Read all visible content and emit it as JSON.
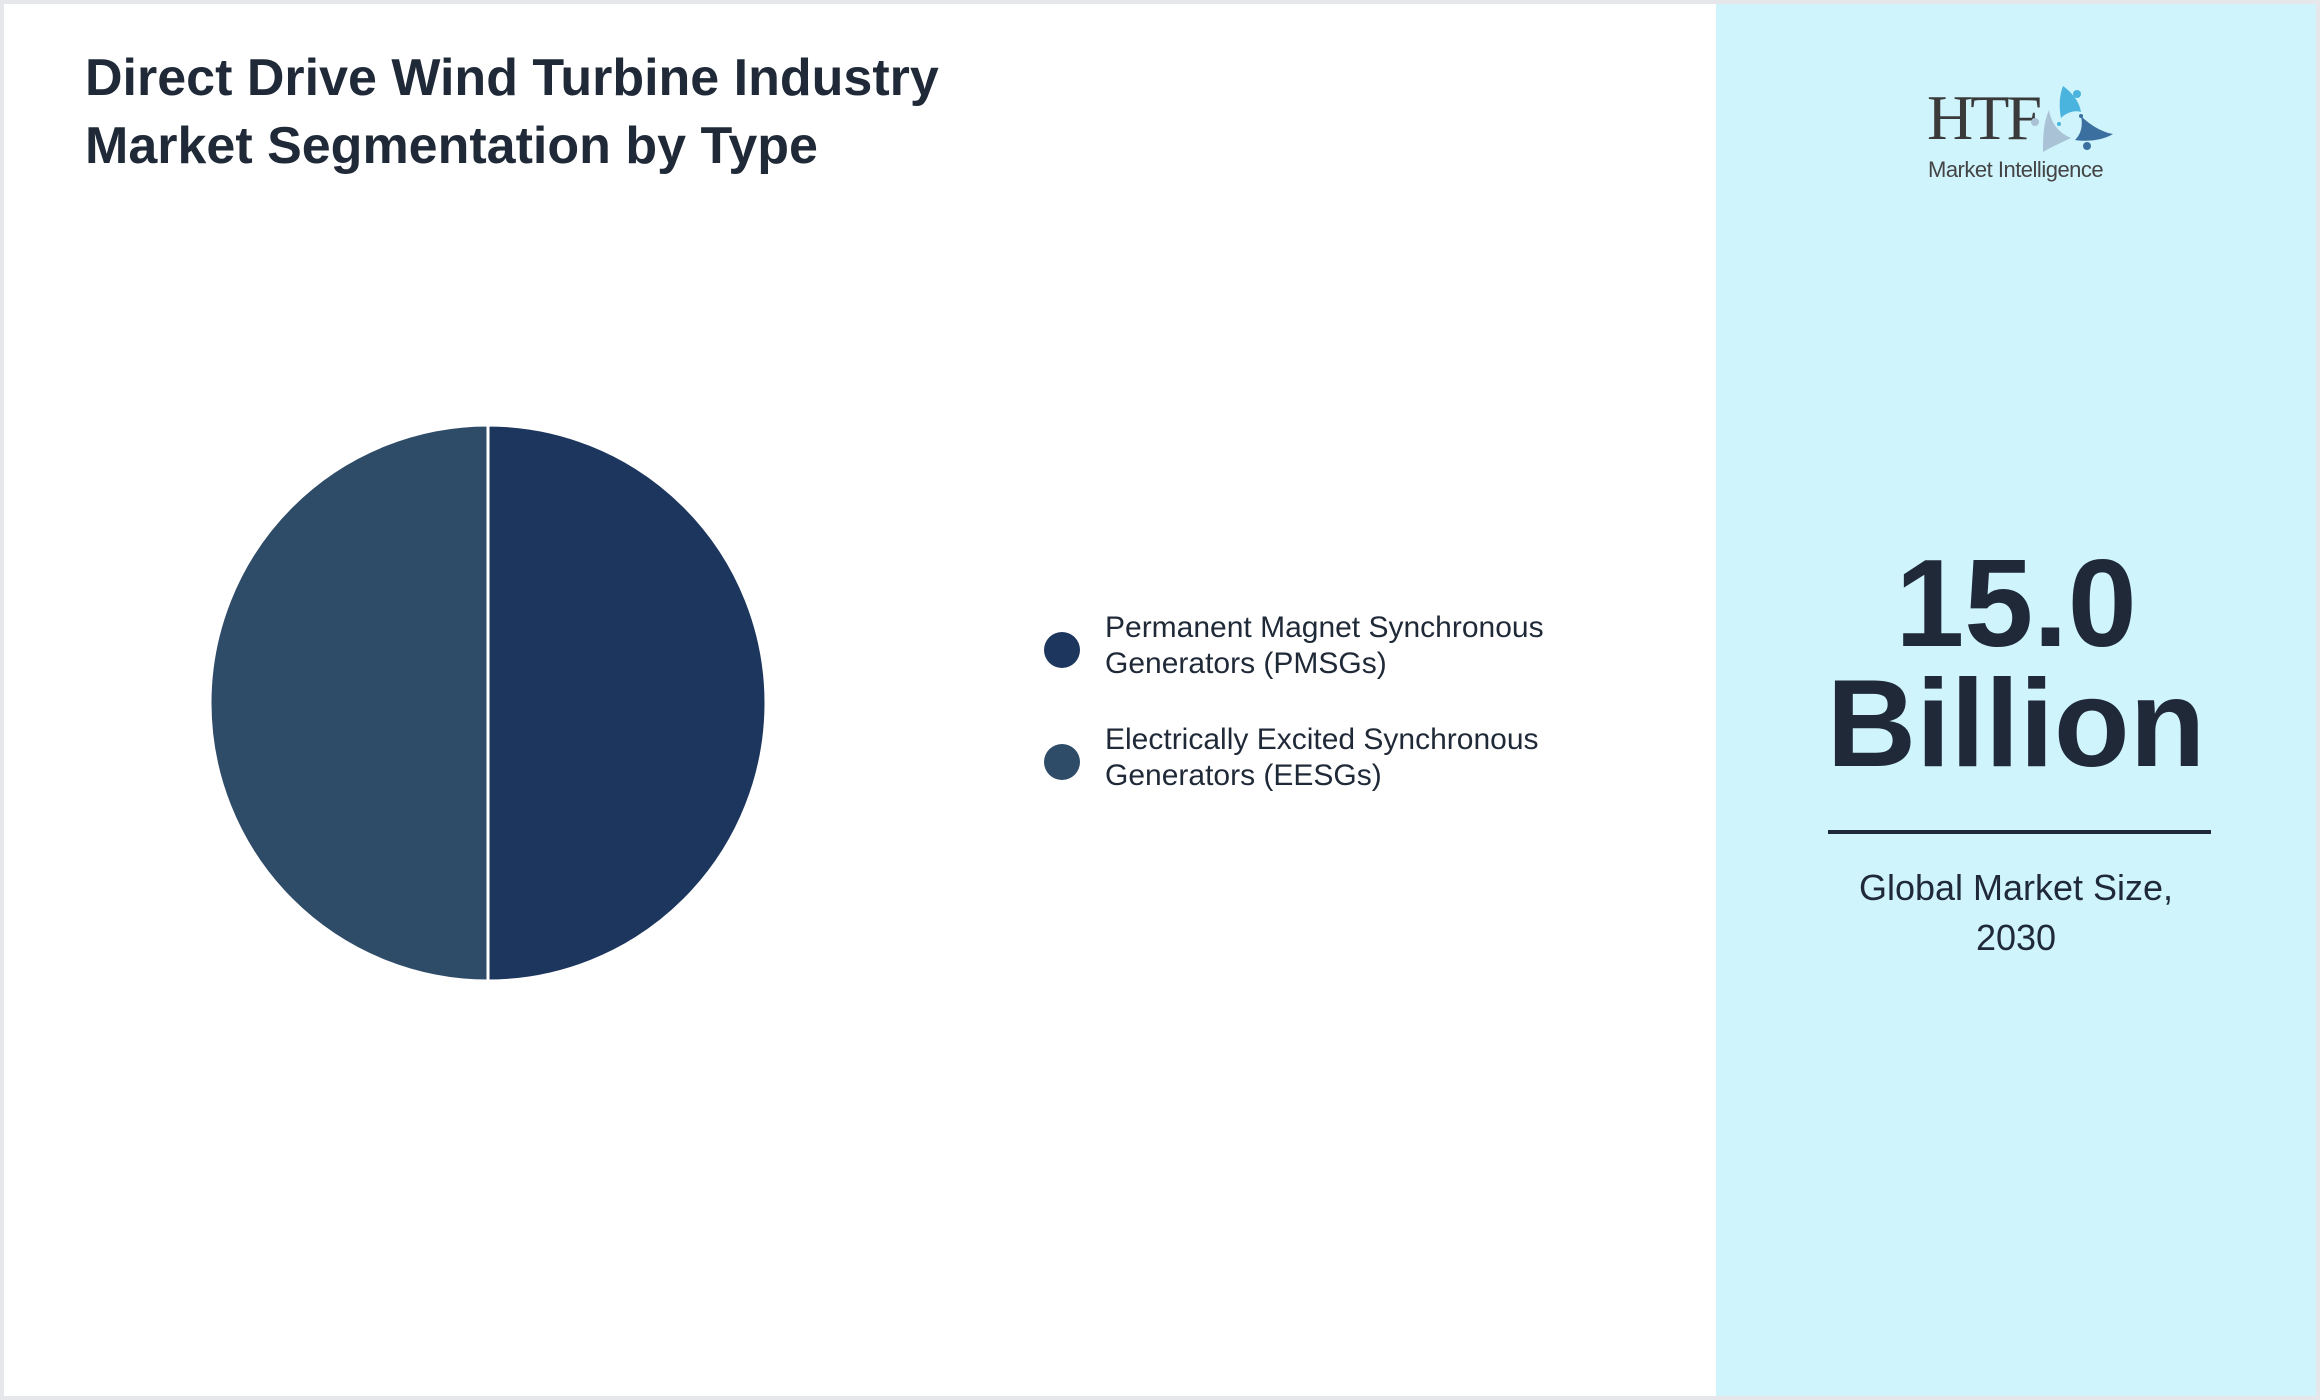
{
  "header": {
    "title_line1": "Direct Drive Wind Turbine Industry",
    "title_line2": "Market Segmentation by Type"
  },
  "legend": {
    "items": [
      {
        "line1": "Permanent Magnet Synchronous",
        "line2": "Generators (PMSGs)",
        "color": "#1d365e"
      },
      {
        "line1": "Electrically Excited Synchronous",
        "line2": "Generators (EESGs)",
        "color": "#2e4b68"
      }
    ]
  },
  "side_panel": {
    "logo": {
      "brand": "HTF",
      "subtitle": "Market Intelligence"
    },
    "value_line1": "15.0",
    "value_line2": "Billion",
    "caption_line1": "Global Market Size,",
    "caption_line2": "2030",
    "background": "#cff4fc"
  },
  "chart_data": {
    "type": "pie",
    "title": "Direct Drive Wind Turbine Industry Market Segmentation by Type",
    "categories": [
      "Permanent Magnet Synchronous Generators (PMSGs)",
      "Electrically Excited Synchronous Generators (EESGs)"
    ],
    "values": [
      50,
      50
    ],
    "colors": [
      "#1d365e",
      "#2e4b68"
    ],
    "unit": "%",
    "legend_position": "right",
    "annotation": "15.0 Billion — Global Market Size, 2030"
  }
}
